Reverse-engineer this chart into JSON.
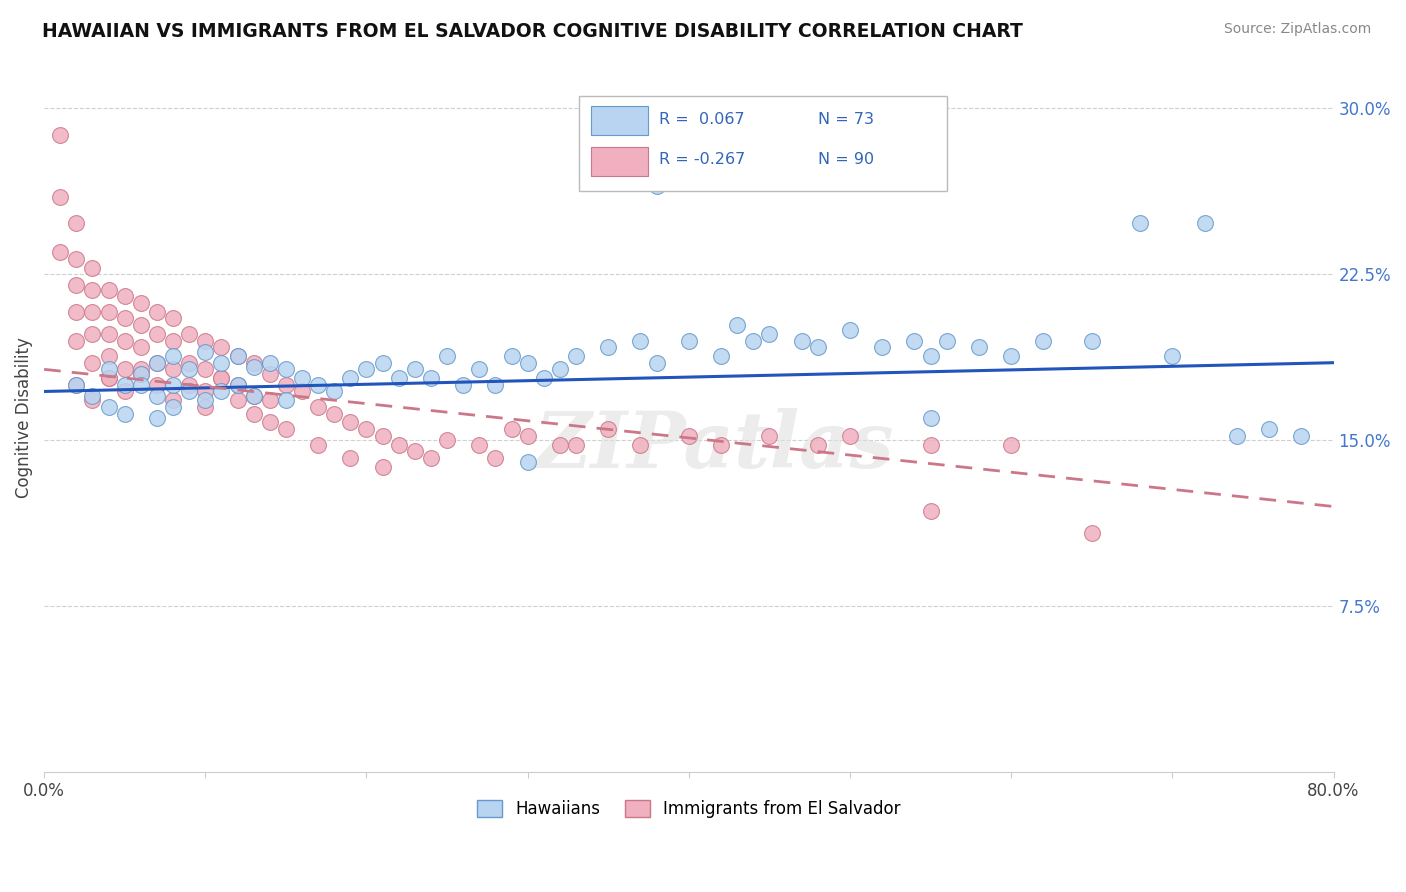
{
  "title": "HAWAIIAN VS IMMIGRANTS FROM EL SALVADOR COGNITIVE DISABILITY CORRELATION CHART",
  "source": "Source: ZipAtlas.com",
  "ylabel": "Cognitive Disability",
  "xlim": [
    0.0,
    0.8
  ],
  "ylim": [
    0.0,
    0.32
  ],
  "xticks": [
    0.0,
    0.1,
    0.2,
    0.3,
    0.4,
    0.5,
    0.6,
    0.7,
    0.8
  ],
  "xticklabels": [
    "0.0%",
    "",
    "",
    "",
    "",
    "",
    "",
    "",
    "80.0%"
  ],
  "yticks_right": [
    0.075,
    0.15,
    0.225,
    0.3
  ],
  "ytick_labels_right": [
    "7.5%",
    "15.0%",
    "22.5%",
    "30.0%"
  ],
  "background_color": "#ffffff",
  "grid_color": "#d0d0d0",
  "hawaiians_color": "#b8d4f0",
  "el_salvador_color": "#f0b0c0",
  "hawaiians_edge_color": "#6699cc",
  "el_salvador_edge_color": "#cc7788",
  "trend_hawaiians_color": "#2255bb",
  "trend_el_salvador_color": "#cc7788",
  "legend_R_hawaiians": "R =  0.067",
  "legend_N_hawaiians": "N = 73",
  "legend_R_el_salvador": "R = -0.267",
  "legend_N_el_salvador": "N = 90",
  "legend_label_hawaiians": "Hawaiians",
  "legend_label_el_salvador": "Immigrants from El Salvador",
  "hawaiians_x": [
    0.02,
    0.03,
    0.04,
    0.04,
    0.05,
    0.05,
    0.06,
    0.06,
    0.07,
    0.07,
    0.07,
    0.08,
    0.08,
    0.08,
    0.09,
    0.09,
    0.1,
    0.1,
    0.11,
    0.11,
    0.12,
    0.12,
    0.13,
    0.13,
    0.14,
    0.15,
    0.15,
    0.16,
    0.17,
    0.18,
    0.19,
    0.2,
    0.21,
    0.22,
    0.23,
    0.24,
    0.25,
    0.26,
    0.27,
    0.28,
    0.29,
    0.3,
    0.31,
    0.32,
    0.33,
    0.35,
    0.37,
    0.38,
    0.4,
    0.42,
    0.43,
    0.44,
    0.45,
    0.47,
    0.48,
    0.5,
    0.52,
    0.54,
    0.55,
    0.56,
    0.58,
    0.6,
    0.62,
    0.65,
    0.68,
    0.7,
    0.72,
    0.74,
    0.76,
    0.78,
    0.3,
    0.38,
    0.55
  ],
  "hawaiians_y": [
    0.175,
    0.17,
    0.165,
    0.182,
    0.175,
    0.162,
    0.18,
    0.175,
    0.185,
    0.17,
    0.16,
    0.188,
    0.175,
    0.165,
    0.182,
    0.172,
    0.19,
    0.168,
    0.185,
    0.172,
    0.188,
    0.175,
    0.183,
    0.17,
    0.185,
    0.182,
    0.168,
    0.178,
    0.175,
    0.172,
    0.178,
    0.182,
    0.185,
    0.178,
    0.182,
    0.178,
    0.188,
    0.175,
    0.182,
    0.175,
    0.188,
    0.185,
    0.178,
    0.182,
    0.188,
    0.192,
    0.195,
    0.185,
    0.195,
    0.188,
    0.202,
    0.195,
    0.198,
    0.195,
    0.192,
    0.2,
    0.192,
    0.195,
    0.188,
    0.195,
    0.192,
    0.188,
    0.195,
    0.195,
    0.248,
    0.188,
    0.248,
    0.152,
    0.155,
    0.152,
    0.14,
    0.265,
    0.16
  ],
  "el_salvador_x": [
    0.01,
    0.01,
    0.01,
    0.02,
    0.02,
    0.02,
    0.02,
    0.02,
    0.03,
    0.03,
    0.03,
    0.03,
    0.03,
    0.04,
    0.04,
    0.04,
    0.04,
    0.04,
    0.05,
    0.05,
    0.05,
    0.05,
    0.06,
    0.06,
    0.06,
    0.06,
    0.07,
    0.07,
    0.07,
    0.08,
    0.08,
    0.08,
    0.09,
    0.09,
    0.1,
    0.1,
    0.1,
    0.11,
    0.11,
    0.12,
    0.12,
    0.13,
    0.13,
    0.14,
    0.14,
    0.15,
    0.16,
    0.17,
    0.18,
    0.19,
    0.2,
    0.21,
    0.22,
    0.23,
    0.24,
    0.25,
    0.27,
    0.28,
    0.29,
    0.3,
    0.32,
    0.33,
    0.35,
    0.37,
    0.4,
    0.42,
    0.45,
    0.48,
    0.5,
    0.55,
    0.6,
    0.65,
    0.55,
    0.02,
    0.03,
    0.04,
    0.05,
    0.06,
    0.07,
    0.08,
    0.09,
    0.1,
    0.11,
    0.12,
    0.13,
    0.14,
    0.15,
    0.17,
    0.19,
    0.21
  ],
  "el_salvador_y": [
    0.288,
    0.26,
    0.235,
    0.248,
    0.232,
    0.22,
    0.208,
    0.195,
    0.228,
    0.218,
    0.208,
    0.198,
    0.185,
    0.218,
    0.208,
    0.198,
    0.188,
    0.178,
    0.215,
    0.205,
    0.195,
    0.182,
    0.212,
    0.202,
    0.192,
    0.18,
    0.208,
    0.198,
    0.185,
    0.205,
    0.195,
    0.182,
    0.198,
    0.185,
    0.195,
    0.182,
    0.172,
    0.192,
    0.178,
    0.188,
    0.175,
    0.185,
    0.17,
    0.18,
    0.168,
    0.175,
    0.172,
    0.165,
    0.162,
    0.158,
    0.155,
    0.152,
    0.148,
    0.145,
    0.142,
    0.15,
    0.148,
    0.142,
    0.155,
    0.152,
    0.148,
    0.148,
    0.155,
    0.148,
    0.152,
    0.148,
    0.152,
    0.148,
    0.152,
    0.148,
    0.148,
    0.108,
    0.118,
    0.175,
    0.168,
    0.178,
    0.172,
    0.182,
    0.175,
    0.168,
    0.175,
    0.165,
    0.178,
    0.168,
    0.162,
    0.158,
    0.155,
    0.148,
    0.142,
    0.138
  ],
  "trend_h_x0": 0.0,
  "trend_h_x1": 0.8,
  "trend_h_y0": 0.172,
  "trend_h_y1": 0.185,
  "trend_e_x0": 0.0,
  "trend_e_x1": 0.8,
  "trend_e_y0": 0.182,
  "trend_e_y1": 0.12
}
